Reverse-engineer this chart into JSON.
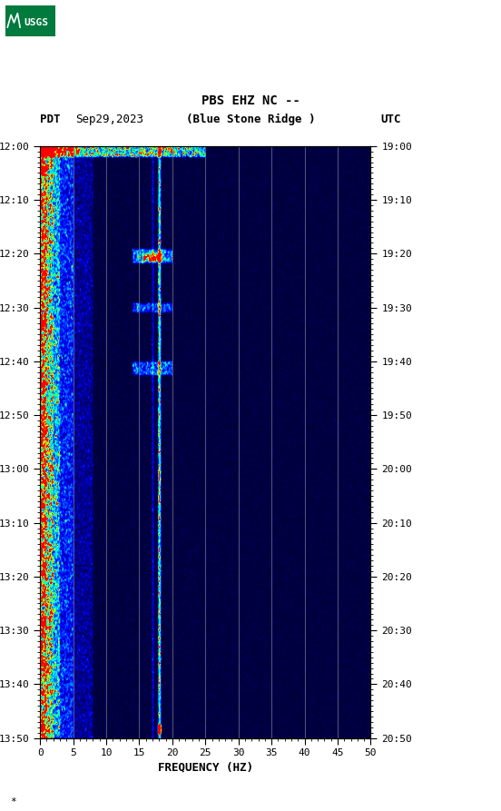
{
  "title_line1": "PBS EHZ NC --",
  "title_line2": "(Blue Stone Ridge )",
  "date": "Sep29,2023",
  "pdt_label": "PDT",
  "utc_label": "UTC",
  "xlabel": "FREQUENCY (HZ)",
  "freq_min": 0,
  "freq_max": 50,
  "pdt_ticks": [
    "12:00",
    "12:10",
    "12:20",
    "12:30",
    "12:40",
    "12:50",
    "13:00",
    "13:10",
    "13:20",
    "13:30",
    "13:40",
    "13:50"
  ],
  "utc_ticks": [
    "19:00",
    "19:10",
    "19:20",
    "19:30",
    "19:40",
    "19:50",
    "20:00",
    "20:10",
    "20:20",
    "20:30",
    "20:40",
    "20:50"
  ],
  "freq_ticks": [
    0,
    5,
    10,
    15,
    20,
    25,
    30,
    35,
    40,
    45,
    50
  ],
  "fig_bg": "#ffffff",
  "usgs_green": "#007a3d",
  "vertical_lines_freq": [
    5,
    10,
    15,
    20,
    25,
    30,
    35,
    40,
    45
  ],
  "noise_seed": 42
}
